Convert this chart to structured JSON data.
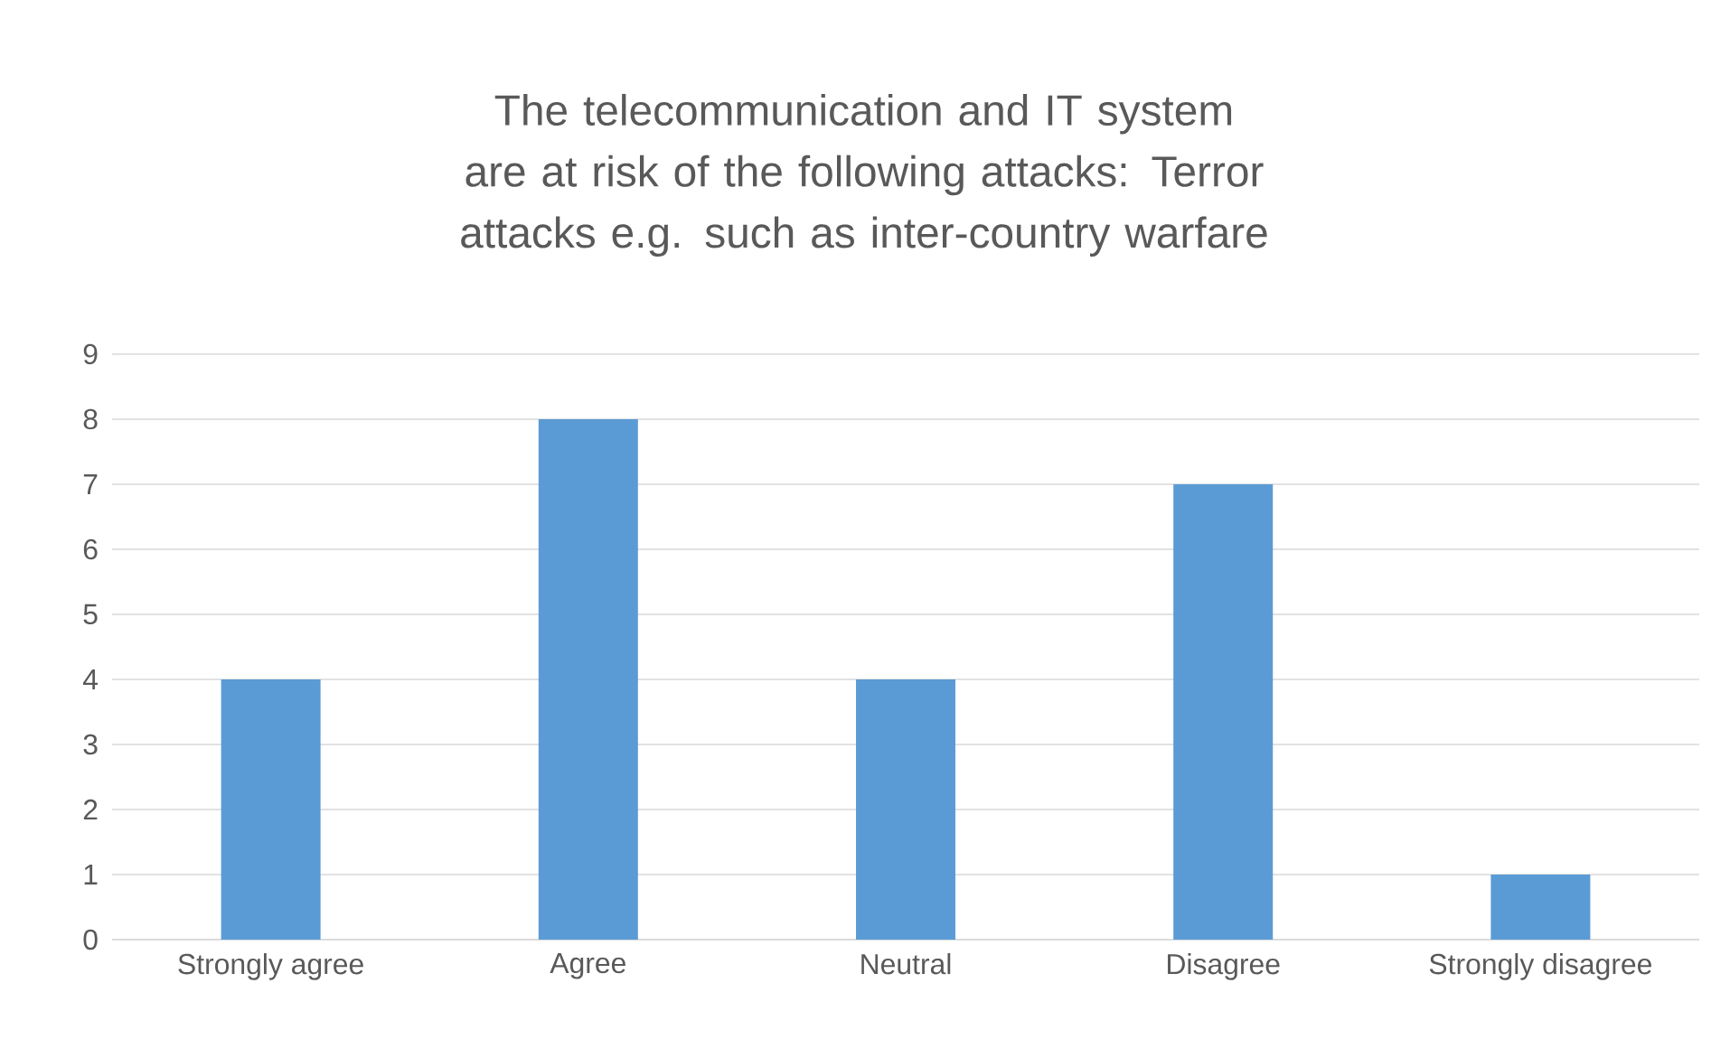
{
  "chart_data": {
    "type": "bar",
    "title": "The telecommunication and IT system are at risk of the following attacks: Terror attacks e.g. such as inter-country warfare",
    "categories": [
      "Strongly agree",
      "Agree",
      "Neutral",
      "Disagree",
      "Strongly disagree"
    ],
    "values": [
      4,
      8,
      4,
      7,
      1
    ],
    "color": "#5b9bd5",
    "ylim": [
      0,
      9
    ],
    "yticks": [
      0,
      1,
      2,
      3,
      4,
      5,
      6,
      7,
      8,
      9
    ],
    "grid": "y"
  }
}
